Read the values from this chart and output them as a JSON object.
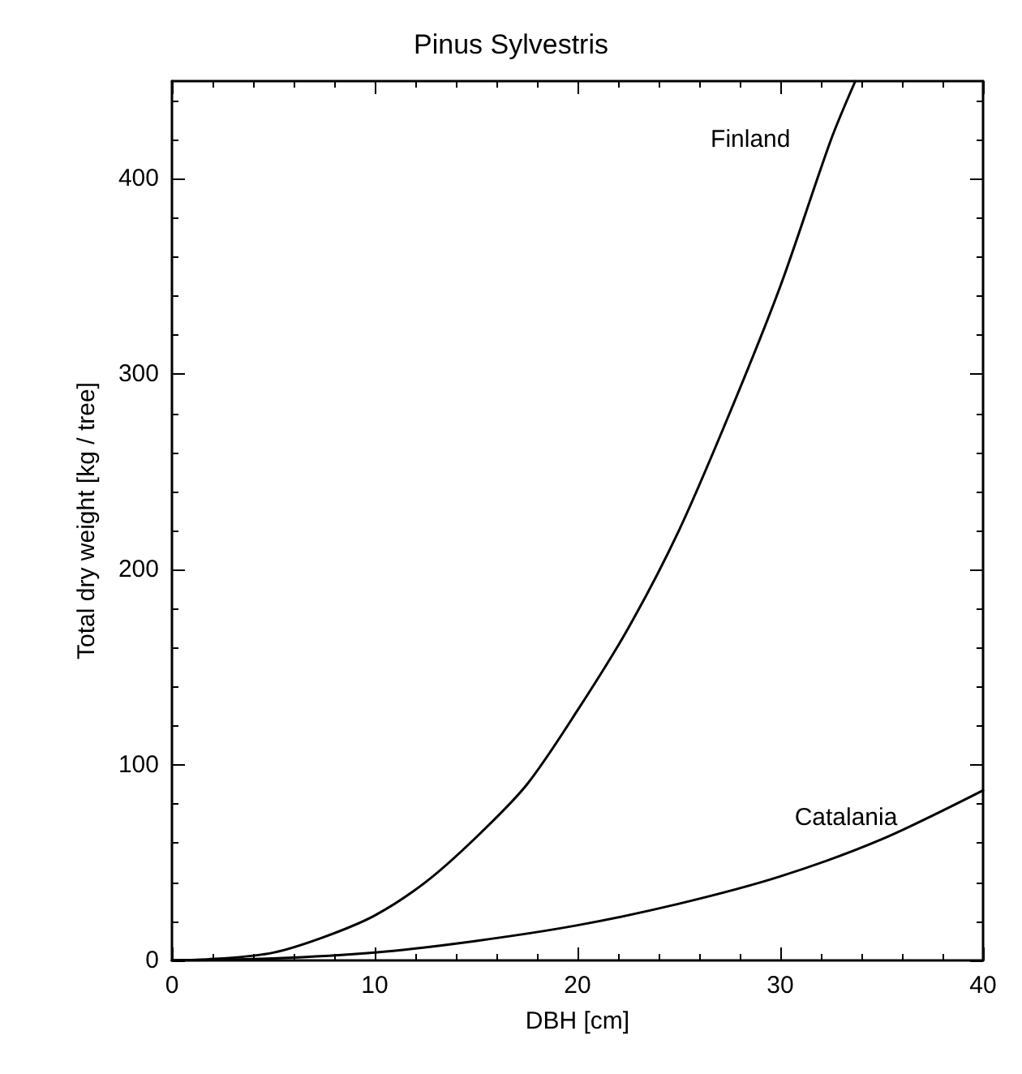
{
  "chart_data": {
    "type": "line",
    "title": "Pinus Sylvestris",
    "xlabel": "DBH [cm]",
    "ylabel": "Total dry weight [kg / tree]",
    "xlim": [
      0,
      40
    ],
    "ylim": [
      0,
      450
    ],
    "xticks": [
      0,
      10,
      20,
      30,
      40
    ],
    "yticks": [
      0,
      100,
      200,
      300,
      400
    ],
    "grid": false,
    "legend": false,
    "marker": "none",
    "line_style": "solid",
    "series": [
      {
        "name": "Finland",
        "color": "#000000",
        "x": [
          0,
          2.5,
          5,
          7.5,
          10,
          12.5,
          15,
          17.5,
          20,
          22.5,
          25,
          27.5,
          30,
          32.5,
          33.7
        ],
        "values": [
          0,
          1,
          4,
          12,
          23,
          40,
          63,
          90,
          128,
          170,
          220,
          280,
          345,
          420,
          450
        ]
      },
      {
        "name": "Catalania",
        "color": "#000000",
        "x": [
          0,
          5,
          10,
          15,
          20,
          25,
          30,
          35,
          40
        ],
        "values": [
          0,
          1,
          4,
          10,
          18,
          29,
          43,
          62,
          87
        ]
      }
    ]
  }
}
